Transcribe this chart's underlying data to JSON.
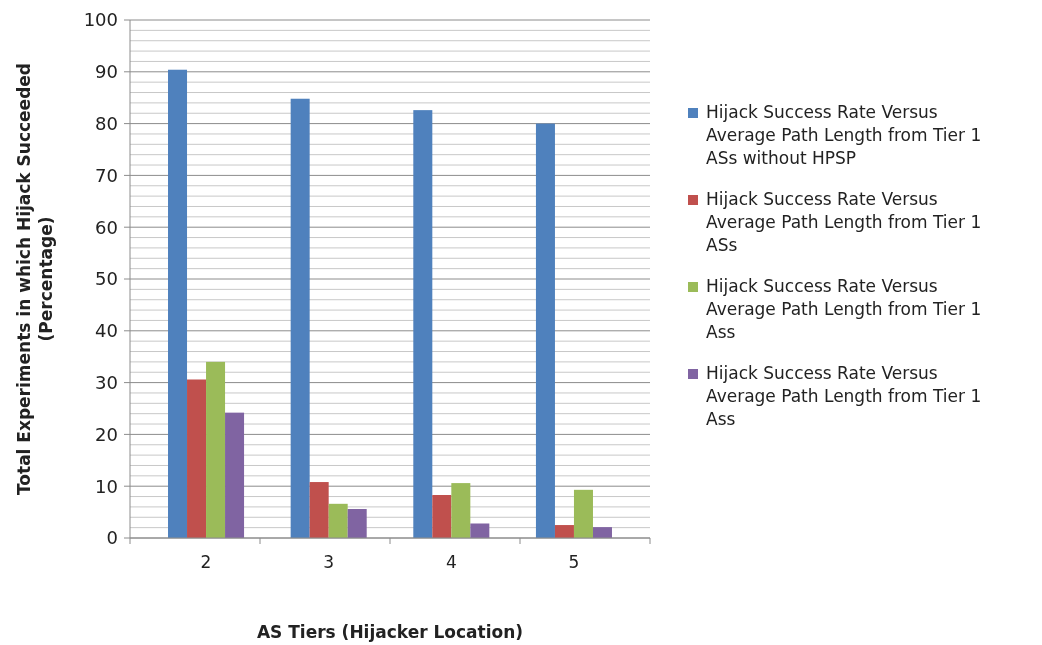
{
  "chart_data": {
    "type": "bar",
    "xlabel": "AS Tiers (Hijacker Location)",
    "ylabel": "Total Experiments in which Hijack Succeeded (Percentage)",
    "categories": [
      "2",
      "3",
      "4",
      "5"
    ],
    "series": [
      {
        "name": "Hijack Success Rate Versus Average Path Length from Tier 1 ASs without HPSP",
        "color": "#4f81bd",
        "values": [
          90.4,
          84.8,
          82.6,
          80
        ]
      },
      {
        "name": "Hijack Success Rate Versus Average Path Length from Tier 1 ASs",
        "color": "#c0504d",
        "values": [
          30.6,
          10.8,
          8.3,
          2.5
        ]
      },
      {
        "name": "Hijack Success Rate Versus Average Path Length from Tier 1 Ass",
        "color": "#9bbb59",
        "values": [
          34,
          6.6,
          10.6,
          9.3
        ]
      },
      {
        "name": "Hijack Success Rate Versus Average Path Length from Tier 1 Ass",
        "color": "#8064a2",
        "values": [
          24.2,
          5.6,
          2.8,
          2.1
        ]
      }
    ],
    "ylim": [
      0,
      100
    ],
    "yticks": [
      0,
      10,
      20,
      30,
      40,
      50,
      60,
      70,
      80,
      90,
      100
    ],
    "grid": "y",
    "legend": "right"
  }
}
